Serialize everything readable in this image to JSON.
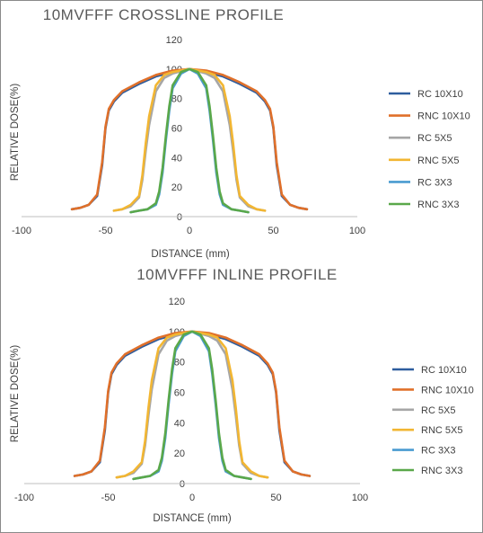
{
  "colors": {
    "RC 10X10": "#2e5d9e",
    "RNC 10X10": "#e0702a",
    "RC 5X5": "#a6a6a6",
    "RNC 5X5": "#f2b632",
    "RC 3X3": "#4a9bd1",
    "RNC 3X3": "#5aa84a"
  },
  "chart_data": [
    {
      "type": "line",
      "title": "10MVFFF CROSSLINE PROFILE",
      "xlabel": "DISTANCE (mm)",
      "ylabel": "RELATIVE DOSE(%)",
      "xlim": [
        -100,
        100
      ],
      "ylim": [
        0,
        120
      ],
      "xticks": [
        "-100",
        "-50",
        "0",
        "50",
        "100"
      ],
      "yticks": [
        "0",
        "20",
        "40",
        "60",
        "80",
        "100",
        "120"
      ],
      "grid": false,
      "legend": "right",
      "series": [
        {
          "name": "RC 10X10",
          "x": [
            -70,
            -65,
            -60,
            -55,
            -52,
            -50,
            -48,
            -45,
            -40,
            -30,
            -20,
            -10,
            0,
            10,
            20,
            30,
            40,
            45,
            48,
            50,
            52,
            55,
            60,
            65,
            70
          ],
          "y": [
            5,
            6,
            8,
            14,
            35,
            60,
            72,
            78,
            84,
            90,
            95,
            98,
            100,
            98,
            95,
            90,
            84,
            78,
            72,
            60,
            35,
            14,
            8,
            6,
            5
          ]
        },
        {
          "name": "RNC 10X10",
          "x": [
            -70,
            -65,
            -60,
            -55,
            -52,
            -50,
            -48,
            -45,
            -40,
            -30,
            -20,
            -10,
            0,
            10,
            20,
            30,
            40,
            45,
            48,
            50,
            52,
            55,
            60,
            65,
            70
          ],
          "y": [
            5,
            6,
            8,
            15,
            37,
            61,
            73,
            79,
            85,
            91,
            96,
            99,
            100,
            99,
            96,
            91,
            85,
            79,
            73,
            61,
            37,
            15,
            8,
            6,
            5
          ]
        },
        {
          "name": "RC 5X5",
          "x": [
            -45,
            -40,
            -35,
            -30,
            -28,
            -26,
            -24,
            -20,
            -15,
            -10,
            0,
            10,
            15,
            20,
            24,
            26,
            28,
            30,
            35,
            40,
            45
          ],
          "y": [
            4,
            5,
            7,
            13,
            25,
            45,
            62,
            85,
            94,
            97,
            100,
            97,
            94,
            85,
            62,
            45,
            25,
            13,
            7,
            5,
            4
          ]
        },
        {
          "name": "RNC 5X5",
          "x": [
            -45,
            -40,
            -35,
            -30,
            -28,
            -26,
            -24,
            -20,
            -15,
            -10,
            0,
            10,
            15,
            20,
            24,
            26,
            28,
            30,
            35,
            40,
            45
          ],
          "y": [
            4,
            5,
            8,
            14,
            28,
            50,
            68,
            89,
            96,
            98,
            100,
            98,
            96,
            89,
            68,
            50,
            28,
            14,
            8,
            5,
            4
          ]
        },
        {
          "name": "RC 3X3",
          "x": [
            -35,
            -30,
            -25,
            -20,
            -18,
            -16,
            -14,
            -12,
            -10,
            -5,
            0,
            5,
            10,
            12,
            14,
            16,
            18,
            20,
            25,
            30,
            35
          ],
          "y": [
            3,
            4,
            5,
            8,
            15,
            30,
            52,
            72,
            87,
            97,
            100,
            97,
            87,
            72,
            52,
            30,
            15,
            8,
            5,
            4,
            3
          ]
        },
        {
          "name": "RNC 3X3",
          "x": [
            -35,
            -30,
            -25,
            -20,
            -18,
            -16,
            -14,
            -12,
            -10,
            -5,
            0,
            5,
            10,
            12,
            14,
            16,
            18,
            20,
            25,
            30,
            35
          ],
          "y": [
            3,
            4,
            5,
            9,
            17,
            33,
            55,
            75,
            89,
            98,
            100,
            98,
            89,
            75,
            55,
            33,
            17,
            9,
            5,
            4,
            3
          ]
        }
      ]
    },
    {
      "type": "line",
      "title": "10MVFFF INLINE PROFILE",
      "xlabel": "DISTANCE (mm)",
      "ylabel": "RELATIVE DOSE(%)",
      "xlim": [
        -100,
        100
      ],
      "ylim": [
        0,
        120
      ],
      "xticks": [
        "-100",
        "-50",
        "0",
        "50",
        "100"
      ],
      "yticks": [
        "0",
        "20",
        "40",
        "60",
        "80",
        "100",
        "120"
      ],
      "grid": false,
      "legend": "right",
      "series": [
        {
          "name": "RC 10X10",
          "x": [
            -70,
            -65,
            -60,
            -55,
            -52,
            -50,
            -48,
            -45,
            -40,
            -30,
            -20,
            -10,
            0,
            10,
            20,
            30,
            40,
            45,
            48,
            50,
            52,
            55,
            60,
            65,
            70
          ],
          "y": [
            5,
            6,
            8,
            14,
            35,
            60,
            72,
            78,
            84,
            90,
            95,
            98,
            100,
            98,
            95,
            90,
            84,
            78,
            72,
            60,
            35,
            14,
            8,
            6,
            5
          ]
        },
        {
          "name": "RNC 10X10",
          "x": [
            -70,
            -65,
            -60,
            -55,
            -52,
            -50,
            -48,
            -45,
            -40,
            -30,
            -20,
            -10,
            0,
            10,
            20,
            30,
            40,
            45,
            48,
            50,
            52,
            55,
            60,
            65,
            70
          ],
          "y": [
            5,
            6,
            8,
            15,
            37,
            61,
            73,
            79,
            85,
            91,
            96,
            99,
            100,
            99,
            96,
            91,
            85,
            79,
            73,
            61,
            37,
            15,
            8,
            6,
            5
          ]
        },
        {
          "name": "RC 5X5",
          "x": [
            -45,
            -40,
            -35,
            -30,
            -28,
            -26,
            -24,
            -20,
            -15,
            -10,
            0,
            10,
            15,
            20,
            24,
            26,
            28,
            30,
            35,
            40,
            45
          ],
          "y": [
            4,
            5,
            7,
            13,
            25,
            45,
            62,
            85,
            94,
            97,
            100,
            97,
            94,
            85,
            62,
            45,
            25,
            13,
            7,
            5,
            4
          ]
        },
        {
          "name": "RNC 5X5",
          "x": [
            -45,
            -40,
            -35,
            -30,
            -28,
            -26,
            -24,
            -20,
            -15,
            -10,
            0,
            10,
            15,
            20,
            24,
            26,
            28,
            30,
            35,
            40,
            45
          ],
          "y": [
            4,
            5,
            8,
            14,
            28,
            50,
            68,
            89,
            96,
            98,
            100,
            98,
            96,
            89,
            68,
            50,
            28,
            14,
            8,
            5,
            4
          ]
        },
        {
          "name": "RC 3X3",
          "x": [
            -35,
            -30,
            -25,
            -20,
            -18,
            -16,
            -14,
            -12,
            -10,
            -5,
            0,
            5,
            10,
            12,
            14,
            16,
            18,
            20,
            25,
            30,
            35
          ],
          "y": [
            3,
            4,
            5,
            8,
            15,
            30,
            52,
            72,
            87,
            97,
            100,
            97,
            87,
            72,
            52,
            30,
            15,
            8,
            5,
            4,
            3
          ]
        },
        {
          "name": "RNC 3X3",
          "x": [
            -35,
            -30,
            -25,
            -20,
            -18,
            -16,
            -14,
            -12,
            -10,
            -5,
            0,
            5,
            10,
            12,
            14,
            16,
            18,
            20,
            25,
            30,
            35
          ],
          "y": [
            3,
            4,
            5,
            9,
            17,
            33,
            55,
            75,
            89,
            98,
            100,
            98,
            89,
            75,
            55,
            33,
            17,
            9,
            5,
            4,
            3
          ]
        }
      ]
    }
  ]
}
